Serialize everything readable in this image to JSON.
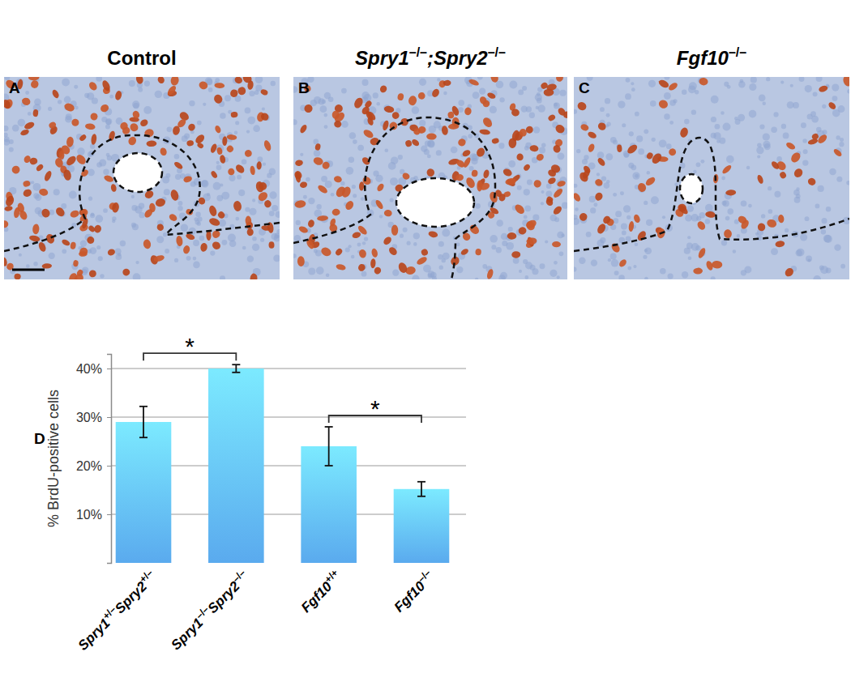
{
  "panels": [
    {
      "label": "A",
      "title": "Control"
    },
    {
      "label": "B",
      "title": "Spry1–/–;Spry2–/–"
    },
    {
      "label": "C",
      "title": "Fgf10–/–"
    }
  ],
  "chart_data": {
    "type": "bar",
    "title": "D",
    "y_label": "% BrdU-positive cells",
    "categories": [
      "Spry1+/–Spry2+/–",
      "Spry1–/–Spry2–/–",
      "Fgf10+/+",
      "Fgf10–/–"
    ],
    "values": [
      29,
      40,
      24,
      15.2
    ],
    "error": [
      3.2,
      0.8,
      4,
      1.5
    ],
    "color": "#5aaaee",
    "ylim": [
      0,
      43
    ],
    "yticks": [
      {
        "value": 10,
        "label": "10%"
      },
      {
        "value": 20,
        "label": "20%"
      },
      {
        "value": 30,
        "label": "30%"
      },
      {
        "value": 40,
        "label": "40%"
      }
    ],
    "grid": true,
    "annotations": [
      {
        "text": "*",
        "between": [
          0,
          1
        ]
      },
      {
        "text": "*",
        "between": [
          2,
          3
        ]
      }
    ]
  }
}
